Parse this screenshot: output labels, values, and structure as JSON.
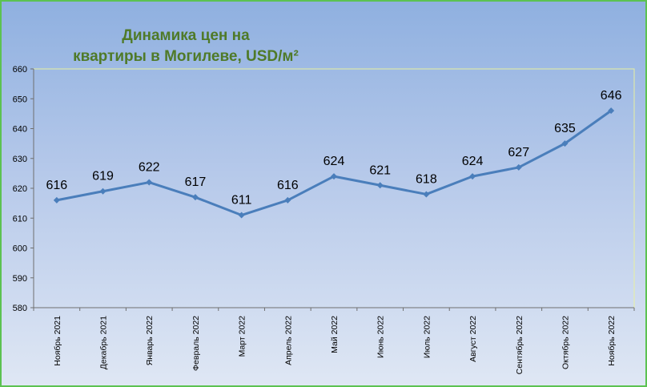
{
  "chart_data": {
    "type": "line",
    "title": "Динамика цен на квартиры в Могилеве, USD/м²",
    "title_lines": [
      "Динамика цен на",
      "квартиры в Могилеве, USD/м²"
    ],
    "categories": [
      "Ноябрь 2021",
      "Декабрь 2021",
      "Январь 2022",
      "Февраль 2022",
      "Март 2022",
      "Апрель 2022",
      "Май 2022",
      "Июнь 2022",
      "Июль 2022",
      "Август 2022",
      "Сентябрь 2022",
      "Октябрь 2022",
      "Ноябрь 2022"
    ],
    "series": [
      {
        "values": [
          616,
          619,
          622,
          617,
          611,
          616,
          624,
          621,
          618,
          624,
          627,
          635,
          646
        ]
      }
    ],
    "ylim": [
      580,
      660
    ],
    "yticks": [
      580,
      590,
      600,
      610,
      620,
      630,
      640,
      650,
      660
    ],
    "grid": false,
    "legend": "none",
    "colors": {
      "line": "#4a7ebb",
      "title": "#4f7a28",
      "frame_border": "#5cc251",
      "plot_border": "#e8f0a0"
    }
  }
}
